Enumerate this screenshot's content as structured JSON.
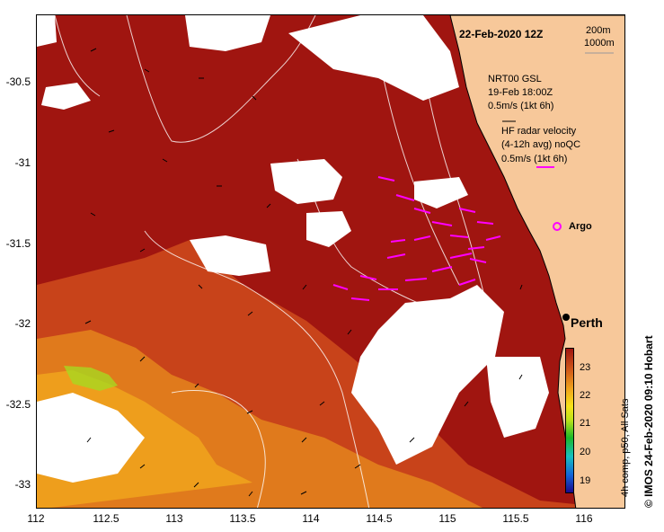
{
  "map": {
    "title": "22-Feb-2020 12Z",
    "depth_contours": [
      "200m",
      "1000m"
    ],
    "model_legend": [
      "NRT00 GSL",
      "19-Feb 18:00Z",
      "0.5m/s (1kt 6h)"
    ],
    "radar_legend": [
      "HF radar velocity",
      "(4-12h avg) noQC",
      "0.5m/s (1kt 6h)"
    ],
    "argo_label": "Argo",
    "city_label": "Perth",
    "credit": "© IMOS 24-Feb-2020 09:10 Hobart",
    "colorbar_label": "4h comp, p50, All Sats",
    "colorbar_ticks": [
      "23",
      "22",
      "21",
      "20",
      "19"
    ],
    "x_ticks": [
      "112",
      "112.5",
      "113",
      "113.5",
      "114",
      "114.5",
      "115",
      "115.5",
      "116"
    ],
    "y_ticks": [
      "-30.5",
      "-31",
      "-31.5",
      "-32",
      "-32.5",
      "-33"
    ],
    "colors": {
      "land": "#f7c89a",
      "sst_hot": "#a01510",
      "sst_mid": "#c8431a",
      "sst_warm": "#e07a1c",
      "sst_cool": "#f0c020",
      "cloud": "#ffffff",
      "radar_arrow": "#ff00ff",
      "model_arrow": "#000000"
    }
  }
}
